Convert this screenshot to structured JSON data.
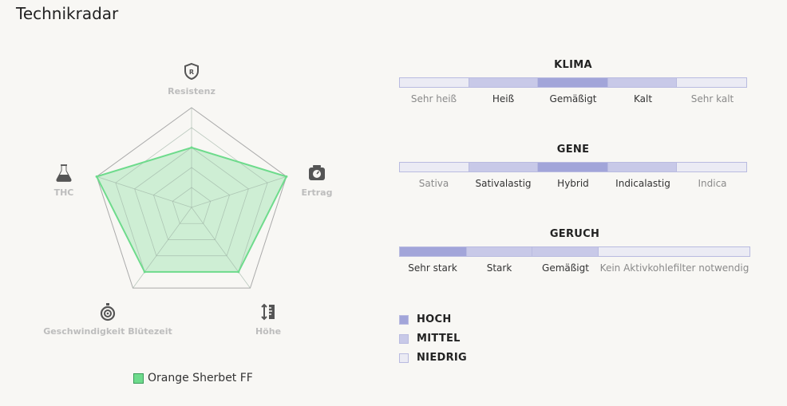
{
  "page": {
    "title": "Technikradar"
  },
  "radar": {
    "axes": [
      {
        "label": "Resistenz",
        "icon": "shield-r-icon"
      },
      {
        "label": "Ertrag",
        "icon": "scale-icon"
      },
      {
        "label": "Höhe",
        "icon": "height-ruler-icon"
      },
      {
        "label": "Geschwindigkeit Blütezeit",
        "icon": "stopwatch-icon"
      },
      {
        "label": "THC",
        "icon": "flask-icon"
      }
    ],
    "max": 5,
    "series": [
      {
        "name": "Orange Sherbet FF",
        "values": [
          3,
          5,
          4,
          4,
          5
        ],
        "color": "#6edb8c"
      }
    ]
  },
  "colors": {
    "hoch": "#a2a5d9",
    "mittel": "#c8c9e8",
    "niedrig": "#ebebf4",
    "border": "#b9bbe0"
  },
  "scales": [
    {
      "title": "KLIMA",
      "segments": [
        "Sehr heiß",
        "Heiß",
        "Gemäßigt",
        "Kalt",
        "Sehr kalt"
      ],
      "levels": [
        "niedrig",
        "mittel",
        "hoch",
        "mittel",
        "niedrig"
      ]
    },
    {
      "title": "GENE",
      "segments": [
        "Sativa",
        "Sativalastig",
        "Hybrid",
        "Indicalastig",
        "Indica"
      ],
      "levels": [
        "niedrig",
        "mittel",
        "hoch",
        "mittel",
        "niedrig"
      ]
    },
    {
      "title": "GERUCH",
      "segments": [
        "Sehr stark",
        "Stark",
        "Gemäßigt",
        "Kein Aktivkohlefilter notwendig"
      ],
      "levels": [
        "hoch",
        "mittel",
        "mittel",
        "niedrig"
      ]
    }
  ],
  "key": [
    {
      "label": "HOCH",
      "level": "hoch"
    },
    {
      "label": "MITTEL",
      "level": "mittel"
    },
    {
      "label": "NIEDRIG",
      "level": "niedrig"
    }
  ]
}
